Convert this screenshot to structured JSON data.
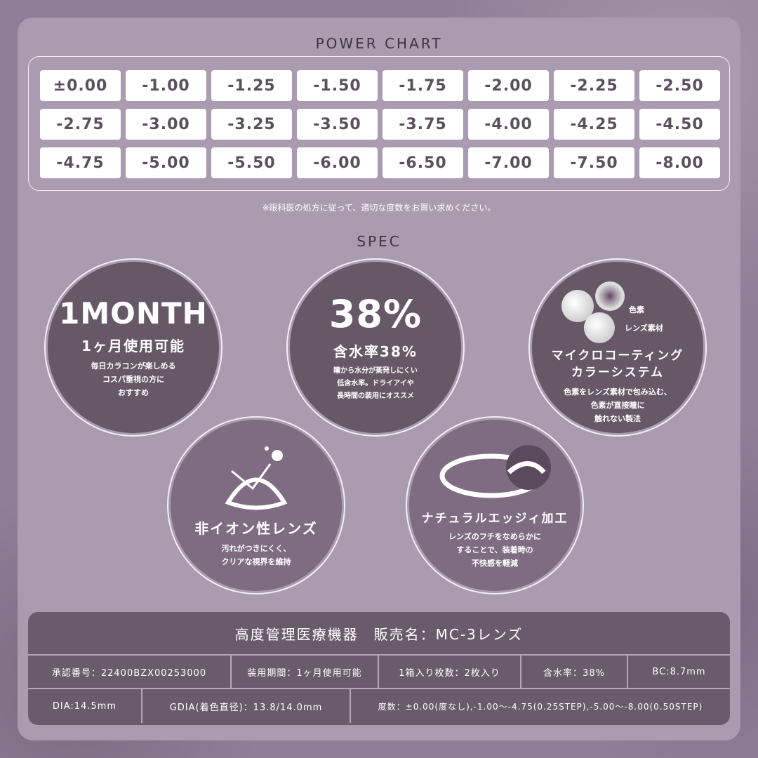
{
  "power_chart": {
    "title": "POWER CHART",
    "values": [
      "±0.00",
      "-1.00",
      "-1.25",
      "-1.50",
      "-1.75",
      "-2.00",
      "-2.25",
      "-2.50",
      "-2.75",
      "-3.00",
      "-3.25",
      "-3.50",
      "-3.75",
      "-4.00",
      "-4.25",
      "-4.50",
      "-4.75",
      "-5.00",
      "-5.50",
      "-6.00",
      "-6.50",
      "-7.00",
      "-7.50",
      "-8.00"
    ],
    "note": "※眼科医の処方に従って、適切な度数をお買い求めください。"
  },
  "spec": {
    "title": "SPEC",
    "items": [
      {
        "big": "1MONTH",
        "heading": "1ヶ月使用可能",
        "desc": "毎日カラコンが楽しめる\nコスパ重視の方に\nおすすめ",
        "icon": "none"
      },
      {
        "big": "38%",
        "heading": "含水率38%",
        "desc": "瞳から水分が蒸発しにくい\n低含水率。ドライアイや\n長時間の装用にオススメ",
        "icon": "none"
      },
      {
        "heading": "マイクロコーティング\nカラーシステム",
        "desc": "色素をレンズ素材で包み込む、\n色素が直接瞳に\n触れない製法",
        "icon": "pigment-spheres-icon",
        "label1": "色素",
        "label2": "レンズ素材"
      },
      {
        "heading": "非イオン性レンズ",
        "desc": "汚れがつきにくく、\nクリアな視界を維持",
        "icon": "lens-repel-icon"
      },
      {
        "heading": "ナチュラルエッジィ加工",
        "desc": "レンズのフチをなめらかに\nすることで、装着時の\n不快感を軽減",
        "icon": "lens-edge-icon"
      }
    ]
  },
  "table": {
    "header": "高度管理医療機器　販売名：MC-3レンズ",
    "row1": [
      "承認番号：22400BZX00253000",
      "装用期間：1ヶ月使用可能",
      "1箱入り枚数：2枚入り",
      "含水率：38%",
      "BC:8.7mm"
    ],
    "row2": [
      "DIA:14.5mm",
      "GDIA(着色直径)：13.8/14.0mm",
      "度数：±0.00(度なし),-1.00〜-4.75(0.25STEP),-5.00〜-8.00(0.50STEP)"
    ]
  }
}
